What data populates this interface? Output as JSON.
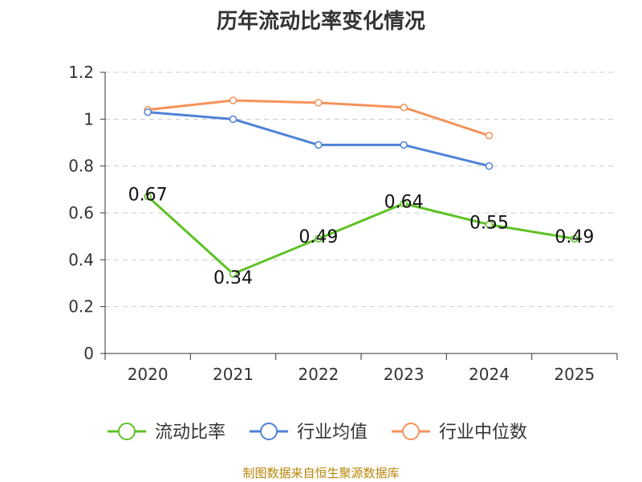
{
  "chart_data": {
    "type": "line",
    "title": "历年流动比率变化情况",
    "categories": [
      "2020",
      "2021",
      "2022",
      "2023",
      "2024",
      "2025"
    ],
    "ylim": [
      0,
      1.2
    ],
    "yticks": [
      "0",
      "0.2",
      "0.4",
      "0.6",
      "0.8",
      "1",
      "1.2"
    ],
    "grid": true,
    "legend_position": "bottom",
    "series": [
      {
        "name": "流动比率",
        "color": "#5ec226",
        "values": [
          0.67,
          0.34,
          0.49,
          0.64,
          0.55,
          0.49
        ],
        "labels": [
          "0.67",
          "0.34",
          "0.49",
          "0.64",
          "0.55",
          "0.49"
        ]
      },
      {
        "name": "行业均值",
        "color": "#4f82d8",
        "values": [
          1.03,
          1.0,
          0.89,
          0.89,
          0.8,
          null
        ]
      },
      {
        "name": "行业中位数",
        "color": "#f5925a",
        "values": [
          1.04,
          1.08,
          1.07,
          1.05,
          0.93,
          null
        ]
      }
    ]
  },
  "source": "制图数据来自恒生聚源数据库"
}
